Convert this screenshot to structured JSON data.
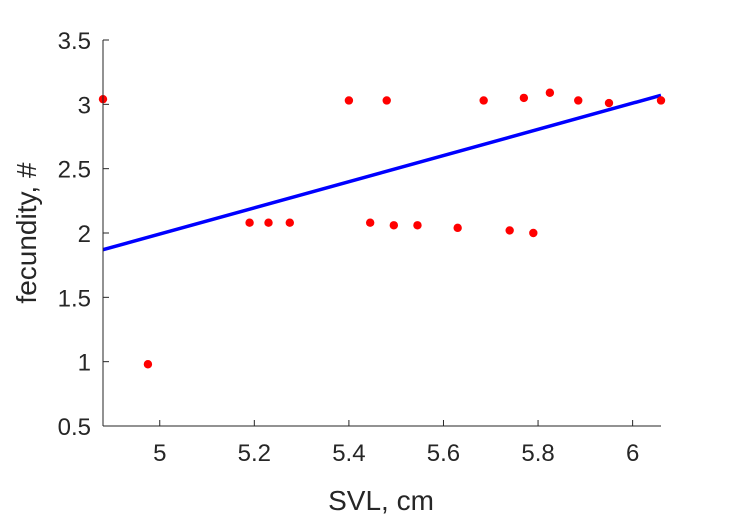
{
  "chart_data": {
    "type": "scatter",
    "title": "",
    "xlabel": "SVL, cm",
    "ylabel": "fecundity, #",
    "xlim": [
      4.88,
      6.06
    ],
    "ylim": [
      0.5,
      3.5
    ],
    "xticks": [
      5,
      5.2,
      5.4,
      5.6,
      5.8,
      6
    ],
    "xtick_labels": [
      "5",
      "5.2",
      "5.4",
      "5.6",
      "5.8",
      "6"
    ],
    "yticks": [
      0.5,
      1,
      1.5,
      2,
      2.5,
      3,
      3.5
    ],
    "ytick_labels": [
      "0.5",
      "1",
      "1.5",
      "2",
      "2.5",
      "3",
      "3.5"
    ],
    "grid": false,
    "marker_color": "#ff0000",
    "line_color": "#0000ff",
    "points": [
      {
        "x": 4.88,
        "y": 3.04
      },
      {
        "x": 4.975,
        "y": 0.98
      },
      {
        "x": 5.19,
        "y": 2.08
      },
      {
        "x": 5.23,
        "y": 2.08
      },
      {
        "x": 5.275,
        "y": 2.08
      },
      {
        "x": 5.4,
        "y": 3.03
      },
      {
        "x": 5.445,
        "y": 2.08
      },
      {
        "x": 5.48,
        "y": 3.03
      },
      {
        "x": 5.495,
        "y": 2.06
      },
      {
        "x": 5.545,
        "y": 2.06
      },
      {
        "x": 5.63,
        "y": 2.04
      },
      {
        "x": 5.685,
        "y": 3.03
      },
      {
        "x": 5.74,
        "y": 2.02
      },
      {
        "x": 5.77,
        "y": 3.05
      },
      {
        "x": 5.79,
        "y": 2.0
      },
      {
        "x": 5.825,
        "y": 3.09
      },
      {
        "x": 5.885,
        "y": 3.03
      },
      {
        "x": 5.95,
        "y": 3.01
      },
      {
        "x": 6.06,
        "y": 3.03
      }
    ],
    "fit_line": {
      "x": [
        4.88,
        6.06
      ],
      "y": [
        1.87,
        3.07
      ]
    }
  }
}
